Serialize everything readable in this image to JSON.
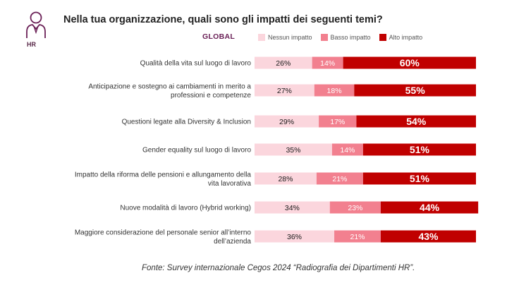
{
  "header": {
    "badge_label": "HR",
    "title": "Nella tua organizzazione, quali sono gli impatti dei seguenti temi?",
    "group_label": "GLOBAL"
  },
  "legend": [
    {
      "label": "Nessun impatto",
      "color": "#fbd6dd"
    },
    {
      "label": "Basso impatto",
      "color": "#f2808f"
    },
    {
      "label": "Alto impatto",
      "color": "#c00000"
    }
  ],
  "chart_data": {
    "type": "bar",
    "orientation": "horizontal",
    "stacked": true,
    "categories": [
      "Qualità della vita sul luogo di lavoro",
      "Anticipazione e sostegno ai cambiamenti in merito a professioni e competenze",
      "Questioni legate alla Diversity & Inclusion",
      "Gender equality sul luogo di lavoro",
      "Impatto della riforma delle pensioni e allungamento della vita lavorativa",
      "Nuove modalità di lavoro (Hybrid working)",
      "Maggiore considerazione del personale senior all’interno dell’azienda"
    ],
    "category_lines": [
      [
        "Qualità della vita sul luogo di lavoro"
      ],
      [
        "Anticipazione e sostegno ai cambiamenti in merito a",
        "professioni e competenze"
      ],
      [
        "Questioni legate alla Diversity & Inclusion"
      ],
      [
        "Gender equality sul luogo di lavoro"
      ],
      [
        "Impatto della riforma delle pensioni e allungamento della",
        "vita lavorativa"
      ],
      [
        "Nuove modalità di lavoro (Hybrid working)"
      ],
      [
        "Maggiore considerazione del personale senior all’interno",
        "dell’azienda"
      ]
    ],
    "series": [
      {
        "name": "Nessun impatto",
        "color": "#fbd6dd",
        "label_color": "#1a1a1a",
        "values": [
          26,
          27,
          29,
          35,
          28,
          34,
          36
        ]
      },
      {
        "name": "Basso impatto",
        "color": "#f2808f",
        "label_color": "#ffffff",
        "values": [
          14,
          18,
          17,
          14,
          21,
          23,
          21
        ]
      },
      {
        "name": "Alto impatto",
        "color": "#c00000",
        "label_color": "#ffffff",
        "values": [
          60,
          55,
          54,
          51,
          51,
          44,
          43
        ]
      }
    ],
    "value_suffix": "%",
    "xlim": [
      0,
      100
    ]
  },
  "footer": {
    "source": "Fonte: Survey internazionale Cegos 2024 “Radiografia dei Dipartimenti HR”."
  }
}
